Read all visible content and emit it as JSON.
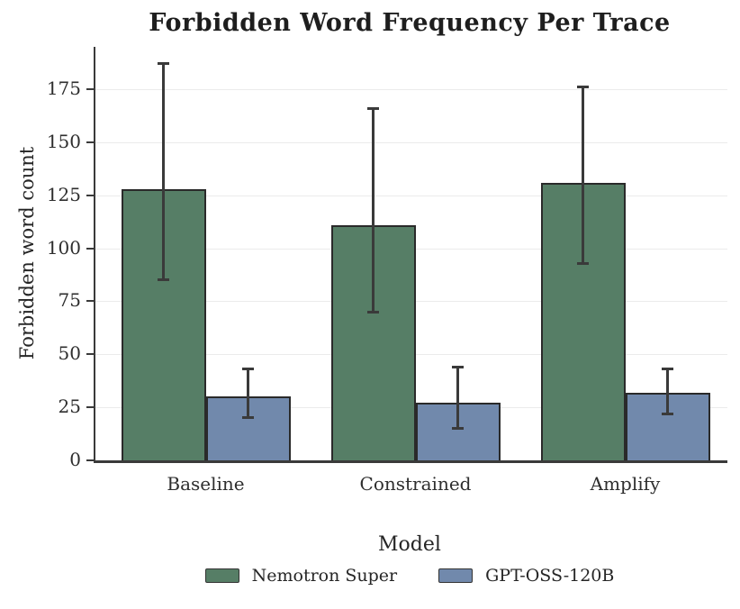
{
  "title": "Forbidden Word Frequency Per Trace",
  "chart_data": {
    "type": "bar",
    "categories": [
      "Baseline",
      "Constrained",
      "Amplify"
    ],
    "series": [
      {
        "name": "Nemotron Super",
        "color": "#567e66",
        "values": [
          128,
          111,
          131
        ],
        "error_low": [
          85,
          70,
          93
        ],
        "error_high": [
          187,
          166,
          176
        ]
      },
      {
        "name": "GPT-OSS-120B",
        "color": "#7189ac",
        "values": [
          30,
          27,
          32
        ],
        "error_low": [
          20,
          15,
          22
        ],
        "error_high": [
          43,
          44,
          43
        ]
      }
    ],
    "xlabel": "Model",
    "ylabel": "Forbidden word count",
    "ylim": [
      0,
      195
    ],
    "yticks": [
      0,
      25,
      50,
      75,
      100,
      125,
      150,
      175
    ],
    "grid": true,
    "legend_position": "bottom",
    "bar_edge_color": "#2a2a2a",
    "error_bar_color": "#3a3a3a",
    "gridline_color": "#ebebeb"
  }
}
